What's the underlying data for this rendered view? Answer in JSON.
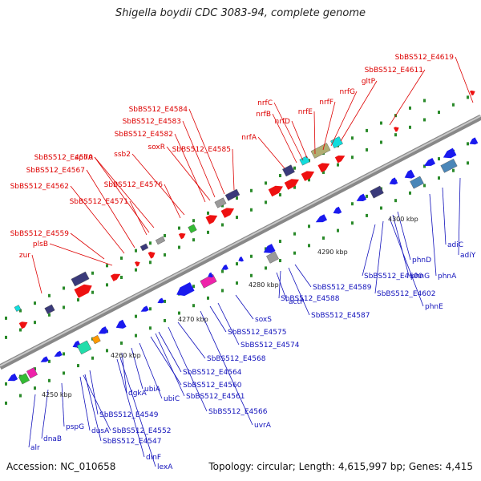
{
  "title": "Shigella boydii CDC 3083-94, complete genome",
  "footer": {
    "accession": "Accession: NC_010658",
    "stats": "Topology: circular; Length: 4,615,997 bp; Genes: 4,415"
  },
  "colors": {
    "top_label": "#dd0000",
    "bottom_label": "#1111bb",
    "backbone": "#9a9a9a",
    "tick": "#2a8a2a"
  },
  "kbp_labels": [
    "4250 kbp",
    "4260 kbp",
    "4270 kbp",
    "4280 kbp",
    "4290 kbp",
    "4300 kbp"
  ],
  "top_labels": [
    "zur",
    "SbBS512_E4559",
    "plsB",
    "SbBS512_E4562",
    "SbBS512_E4567",
    "SbBS512_E4571",
    "SbBS512_E4570",
    "aphA",
    "SbBS512_E4576",
    "ssb2",
    "soxR",
    "SbBS512_E4582",
    "SbBS512_E4583",
    "SbBS512_E4584",
    "SbBS512_E4585",
    "nrfA",
    "nrfB",
    "nrfC",
    "nrfD",
    "nrfE",
    "nrfF",
    "nrfG",
    "gltP",
    "SbBS512_E4611",
    "SbBS512_E4619"
  ],
  "bottom_labels": [
    "alr",
    "dnaB",
    "pspG",
    "dusA",
    "SbBS512_E4547",
    "SbBS512_E4552",
    "SbBS512_E4549",
    "dinF",
    "lexA",
    "dgkA",
    "ubiA",
    "ubiC",
    "SbBS512_E4560",
    "SbBS512_E4561",
    "SbBS512_E4564",
    "SbBS512_E4566",
    "SbBS512_E4568",
    "uvrA",
    "SbBS512_E4574",
    "SbBS512_E4575",
    "soxS",
    "actP",
    "SbBS512_E4588",
    "SbBS512_E4587",
    "SbBS512_E4589",
    "SbBS512_E4600",
    "SbBS512_E4602",
    "phnE",
    "phnG",
    "phnD",
    "phnA",
    "adiC",
    "adiY"
  ]
}
